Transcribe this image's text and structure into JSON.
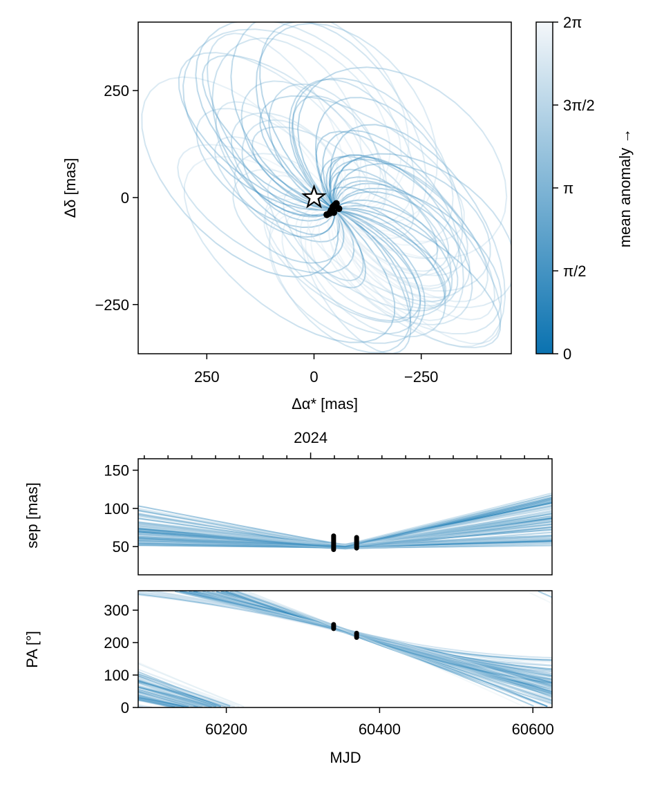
{
  "chart_data": [
    {
      "type": "line",
      "panel": "sky-orbit",
      "xlabel": "Δα* [mas]",
      "ylabel": "Δδ [mas]",
      "xlim": [
        410,
        -460
      ],
      "ylim": [
        -365,
        410
      ],
      "xticks": [
        250,
        0,
        -250
      ],
      "xtick_labels": [
        "250",
        "0",
        "−250"
      ],
      "yticks": [
        250,
        0,
        -250
      ],
      "ytick_labels": [
        "250",
        "0",
        "−250"
      ],
      "star": {
        "x": 0,
        "y": 0
      },
      "observations": [
        {
          "x": -48,
          "y": -18
        },
        {
          "x": -52,
          "y": -14
        },
        {
          "x": -44,
          "y": -22
        },
        {
          "x": -58,
          "y": -26
        },
        {
          "x": -40,
          "y": -30
        },
        {
          "x": -46,
          "y": -35
        },
        {
          "x": -36,
          "y": -37
        },
        {
          "x": -30,
          "y": -40
        },
        {
          "x": -42,
          "y": -32
        }
      ],
      "orbit_sample_count": 60,
      "colorbar": {
        "label": "mean anomaly →",
        "ticks": [
          0,
          1.5708,
          3.1416,
          4.7124,
          6.2832
        ],
        "tick_labels": [
          "0",
          "π/2",
          "π",
          "3π/2",
          "2π"
        ],
        "color_low": "#0a72b0",
        "color_high": "#f4f7fa"
      }
    },
    {
      "type": "line",
      "panel": "separation",
      "xlim": [
        60085,
        60625
      ],
      "ylim": [
        13,
        165
      ],
      "ylabel": "sep [mas]",
      "yticks": [
        50,
        100,
        150
      ],
      "ytick_labels": [
        "50",
        "100",
        "150"
      ],
      "top_axis": {
        "label": "2024",
        "label_mjd": 60310
      },
      "observation_epochs": [
        {
          "mjd": 60340,
          "range": [
            46,
            64
          ]
        },
        {
          "mjd": 60370,
          "range": [
            48,
            62
          ]
        }
      ],
      "curve_sample_count": 90
    },
    {
      "type": "line",
      "panel": "position-angle",
      "xlim": [
        60085,
        60625
      ],
      "ylim": [
        0,
        360
      ],
      "ylabel": "PA [°]",
      "xlabel": "MJD",
      "yticks": [
        0,
        100,
        200,
        300
      ],
      "ytick_labels": [
        "0",
        "100",
        "200",
        "300"
      ],
      "xticks": [
        60200,
        60400,
        60600
      ],
      "xtick_labels": [
        "60200",
        "60400",
        "60600"
      ],
      "observation_epochs": [
        {
          "mjd": 60340,
          "range": [
            243,
            256
          ]
        },
        {
          "mjd": 60370,
          "range": [
            216,
            229
          ]
        }
      ],
      "curve_sample_count": 90
    }
  ]
}
